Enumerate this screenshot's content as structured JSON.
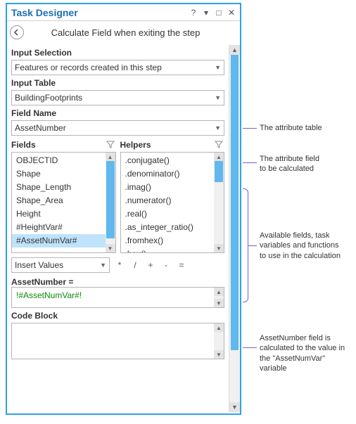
{
  "colors": {
    "panel_border": "#2da2e6",
    "title_color": "#1b6fb5",
    "scroll_thumb": "#5fb8ee",
    "selection_bg": "#bfe3fb",
    "annotation_line": "#7a5fcf",
    "expr_token": "#0a8a0a"
  },
  "header": {
    "title": "Task Designer",
    "help": "?",
    "menu": "▾",
    "restore": "□",
    "close": "✕"
  },
  "step": {
    "title": "Calculate Field when exiting the step"
  },
  "form": {
    "input_selection_label": "Input Selection",
    "input_selection_value": "Features or records created in this step",
    "input_table_label": "Input Table",
    "input_table_value": "BuildingFootprints",
    "field_name_label": "Field Name",
    "field_name_value": "AssetNumber",
    "fields_label": "Fields",
    "helpers_label": "Helpers",
    "fields_list": [
      "OBJECTID",
      "Shape",
      "Shape_Length",
      "Shape_Area",
      "Height",
      "#HeightVar#",
      "#AssetNumVar#"
    ],
    "fields_selected_index": 6,
    "helpers_list": [
      ".conjugate()",
      ".denominator()",
      ".imag()",
      ".numerator()",
      ".real()",
      ".as_integer_ratio()",
      ".fromhex()",
      ".hex()"
    ],
    "insert_values_label": "Insert Values",
    "operators": [
      "*",
      "/",
      "+",
      "-",
      "="
    ],
    "expr_label": "AssetNumber =",
    "expr_value": "!#AssetNumVar#!",
    "codeblock_label": "Code Block"
  },
  "annotations": {
    "a1": "The attribute table",
    "a2_l1": "The attribute field",
    "a2_l2": "to be calculated",
    "a3_l1": "Available fields, task",
    "a3_l2": "variables and functions",
    "a3_l3": "to use in the calculation",
    "a4_l1": "AssetNumber field is",
    "a4_l2": "calculated to the value in",
    "a4_l3": "the \"AssetNumVar\" variable"
  }
}
